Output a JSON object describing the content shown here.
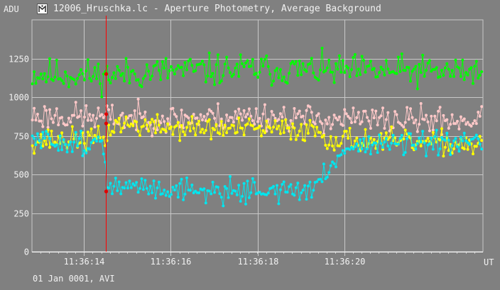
{
  "window": {
    "title": "12006_Hruschka.lc - Aperture Photometry, Average Background",
    "icon": "app-logo-icon"
  },
  "footer": {
    "date_text": "01 Jan 0001, AVI"
  },
  "colors": {
    "background": "#808080",
    "grid": "#c8c8c8",
    "cursor": "#ff0000",
    "green": "#00ff00",
    "pink": "#ffc8c8",
    "yellow": "#ffff00",
    "cyan": "#00e5ee"
  },
  "chart_data": {
    "type": "line",
    "title": "12006_Hruschka.lc - Aperture Photometry, Average Background",
    "ylabel": "ADU",
    "xlabel": "UT",
    "ylim": [
      0,
      1500
    ],
    "yticks": [
      0,
      250,
      500,
      750,
      1000,
      1250
    ],
    "xlim": [
      12.8,
      23.2
    ],
    "xticks": [
      {
        "value": 14.0,
        "label": "11:36:14"
      },
      {
        "value": 16.0,
        "label": "11:36:16"
      },
      {
        "value": 18.0,
        "label": "11:36:18"
      },
      {
        "value": 20.0,
        "label": "11:36:20"
      }
    ],
    "x_unit": "seconds after 11:36:00 UT",
    "grid": true,
    "frame_step_seconds": 0.04,
    "cursor_x": 14.5,
    "series": [
      {
        "color": "#00ff00",
        "keyframes": [
          [
            12.8,
            1150
          ],
          [
            14.5,
            1140
          ],
          [
            16.0,
            1170
          ],
          [
            18.0,
            1180
          ],
          [
            20.0,
            1170
          ],
          [
            22.0,
            1165
          ],
          [
            23.2,
            1170
          ]
        ],
        "noise": 75,
        "seed": 11
      },
      {
        "color": "#ffc8c8",
        "keyframes": [
          [
            12.8,
            880
          ],
          [
            14.5,
            870
          ],
          [
            16.0,
            860
          ],
          [
            18.0,
            880
          ],
          [
            20.0,
            855
          ],
          [
            22.0,
            850
          ],
          [
            23.2,
            850
          ]
        ],
        "noise": 65,
        "seed": 23
      },
      {
        "color": "#ffff00",
        "keyframes": [
          [
            12.8,
            720
          ],
          [
            14.5,
            730
          ],
          [
            14.7,
            830
          ],
          [
            16.0,
            800
          ],
          [
            18.0,
            790
          ],
          [
            19.4,
            790
          ],
          [
            19.6,
            730
          ],
          [
            20.5,
            720
          ],
          [
            22.0,
            700
          ],
          [
            23.2,
            700
          ]
        ],
        "noise": 55,
        "seed": 37
      },
      {
        "color": "#00e5ee",
        "keyframes": [
          [
            12.8,
            720
          ],
          [
            14.4,
            700
          ],
          [
            14.55,
            420
          ],
          [
            16.0,
            410
          ],
          [
            17.0,
            390
          ],
          [
            18.0,
            400
          ],
          [
            19.2,
            390
          ],
          [
            19.6,
            500
          ],
          [
            19.9,
            650
          ],
          [
            20.5,
            700
          ],
          [
            22.0,
            690
          ],
          [
            23.2,
            700
          ]
        ],
        "noise": 55,
        "seed": 51
      }
    ],
    "cursor_markers": [
      1150,
      890,
      830,
      390
    ]
  }
}
